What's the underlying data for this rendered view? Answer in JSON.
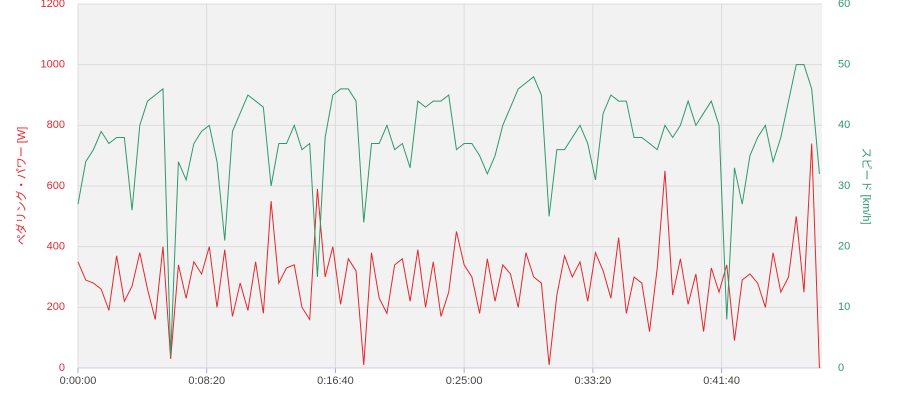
{
  "chart_data": {
    "type": "line",
    "y_label": "ペダリング・パワー [W]",
    "y2_label": "スピード [km/h]",
    "x": [
      0,
      30,
      60,
      90,
      120,
      150,
      180,
      210,
      240,
      270,
      300,
      330,
      360,
      390,
      420,
      450,
      480,
      510,
      540,
      570,
      600,
      630,
      660,
      690,
      720,
      750,
      780,
      810,
      840,
      870,
      900,
      930,
      960,
      990,
      1020,
      1050,
      1080,
      1110,
      1140,
      1170,
      1200,
      1230,
      1260,
      1290,
      1320,
      1350,
      1380,
      1410,
      1440,
      1470,
      1500,
      1530,
      1560,
      1590,
      1620,
      1650,
      1680,
      1710,
      1740,
      1770,
      1800,
      1830,
      1860,
      1890,
      1920,
      1950,
      1980,
      2010,
      2040,
      2070,
      2100,
      2130,
      2160,
      2190,
      2220,
      2250,
      2280,
      2310,
      2340,
      2370,
      2400,
      2430,
      2460,
      2490,
      2520,
      2550,
      2580,
      2610,
      2640,
      2670,
      2700,
      2730,
      2760,
      2790,
      2820,
      2850,
      2880
    ],
    "series": [
      {
        "name": "ペダリング・パワー",
        "color": "#e8262b",
        "axis": "y",
        "values": [
          350,
          290,
          280,
          260,
          190,
          370,
          220,
          270,
          380,
          260,
          160,
          400,
          30,
          340,
          230,
          350,
          310,
          400,
          200,
          390,
          170,
          280,
          190,
          350,
          180,
          550,
          280,
          330,
          340,
          200,
          160,
          590,
          300,
          400,
          210,
          360,
          320,
          10,
          380,
          230,
          180,
          340,
          360,
          220,
          390,
          200,
          350,
          170,
          250,
          450,
          340,
          300,
          180,
          360,
          220,
          340,
          310,
          200,
          380,
          300,
          280,
          10,
          240,
          370,
          300,
          350,
          220,
          380,
          320,
          230,
          430,
          180,
          300,
          280,
          120,
          330,
          650,
          240,
          360,
          210,
          310,
          120,
          330,
          250,
          340,
          90,
          290,
          310,
          280,
          200,
          380,
          250,
          300,
          500,
          250,
          740,
          0
        ]
      },
      {
        "name": "スピード",
        "color": "#2e9a6c",
        "axis": "y2",
        "values": [
          27,
          34,
          36,
          39,
          37,
          38,
          38,
          26,
          40,
          44,
          45,
          46,
          2,
          34,
          31,
          37,
          39,
          40,
          34,
          21,
          39,
          42,
          45,
          44,
          43,
          30,
          37,
          37,
          40,
          36,
          37,
          15,
          38,
          45,
          46,
          46,
          44,
          24,
          37,
          37,
          40,
          36,
          37,
          33,
          44,
          43,
          44,
          44,
          45,
          36,
          37,
          37,
          35,
          32,
          35,
          40,
          43,
          46,
          47,
          48,
          45,
          25,
          36,
          36,
          38,
          40,
          37,
          31,
          42,
          45,
          44,
          44,
          38,
          38,
          37,
          36,
          40,
          38,
          40,
          44,
          40,
          42,
          44,
          40,
          8,
          33,
          27,
          35,
          38,
          40,
          34,
          38,
          44,
          50,
          50,
          46,
          32
        ]
      }
    ],
    "xlim": [
      0,
      2890
    ],
    "xticks": [
      {
        "value": 0,
        "label": "0:00:00"
      },
      {
        "value": 500,
        "label": "0:08:20"
      },
      {
        "value": 1000,
        "label": "0:16:40"
      },
      {
        "value": 1500,
        "label": "0:25:00"
      },
      {
        "value": 2000,
        "label": "0:33:20"
      },
      {
        "value": 2500,
        "label": "0:41:40"
      }
    ],
    "ylim": [
      0,
      1200
    ],
    "yticks": [
      0,
      200,
      400,
      600,
      800,
      1000,
      1200
    ],
    "y2lim": [
      0,
      60
    ],
    "y2ticks": [
      0,
      10,
      20,
      30,
      40,
      50,
      60
    ],
    "grid": true
  }
}
